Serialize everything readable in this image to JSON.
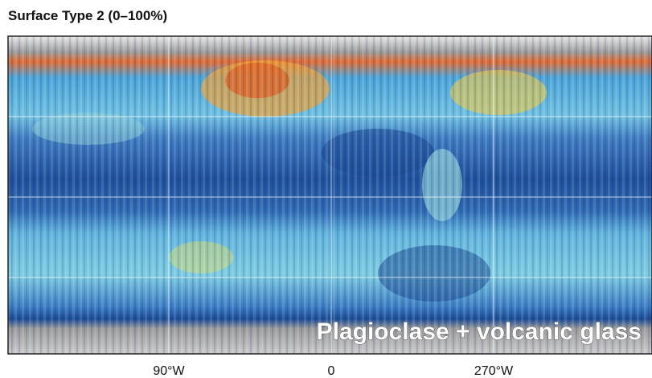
{
  "title": "Surface Type 2 (0–100%)",
  "x_labels": [
    "90°W",
    "0",
    "270°W"
  ],
  "overlay_label": "Plagioclase + volcanic glass"
}
